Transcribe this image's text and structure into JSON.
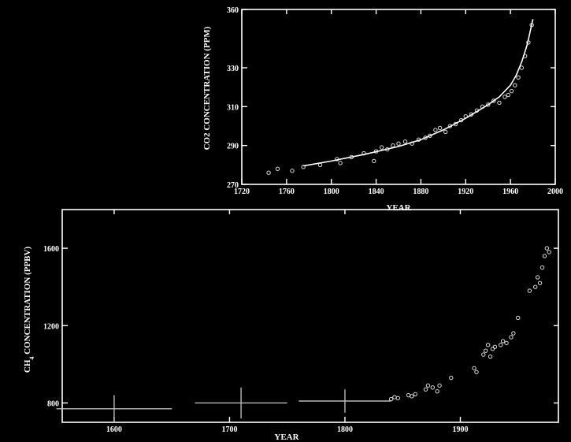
{
  "chart_data": [
    {
      "type": "scatter",
      "title": "",
      "xlabel": "YEAR",
      "ylabel": "CO2 CONCENTRATION (PPM)",
      "xlim": [
        1720,
        2000
      ],
      "ylim": [
        270,
        360
      ],
      "xticks": [
        1720,
        1760,
        1800,
        1840,
        1880,
        1920,
        1960,
        2000
      ],
      "yticks": [
        270,
        290,
        310,
        330,
        360
      ],
      "grid": false,
      "series": [
        {
          "kind": "points",
          "x": [
            1744,
            1752,
            1765,
            1775,
            1790,
            1805,
            1808,
            1818,
            1829,
            1838,
            1840,
            1845,
            1850,
            1855,
            1860,
            1866,
            1872,
            1878,
            1884,
            1888,
            1893,
            1897,
            1902,
            1906,
            1911,
            1916,
            1920,
            1925,
            1930,
            1935,
            1940,
            1945,
            1950,
            1955,
            1958,
            1961,
            1964,
            1967,
            1970,
            1973,
            1976,
            1979
          ],
          "y": [
            276,
            278,
            277,
            279,
            280,
            283,
            281,
            284,
            286,
            282,
            287,
            289,
            288,
            290,
            291,
            292,
            291,
            293,
            294,
            295,
            298,
            299,
            297,
            300,
            301,
            303,
            305,
            306,
            308,
            310,
            311,
            313,
            312,
            315,
            316,
            318,
            321,
            325,
            330,
            336,
            343,
            352
          ]
        },
        {
          "kind": "fit-line",
          "x": [
            1775,
            1800,
            1830,
            1860,
            1880,
            1900,
            1920,
            1940,
            1950,
            1960,
            1965,
            1970,
            1975,
            1980
          ],
          "y": [
            279.5,
            282,
            285.5,
            289.5,
            293,
            298,
            304,
            311,
            315,
            321,
            326,
            333,
            342,
            355
          ]
        }
      ]
    },
    {
      "type": "scatter",
      "title": "",
      "xlabel": "YEAR",
      "ylabel": "CH4 CONCENTRATION (PPBV)",
      "ylabel_main": "CH",
      "ylabel_sub": "4",
      "ylabel_rest": " CONCENTRATION (PPBV)",
      "xlim": [
        1555,
        1985
      ],
      "ylim": [
        700,
        1800
      ],
      "xticks": [
        1600,
        1700,
        1800,
        1900
      ],
      "yticks": [
        800,
        1200,
        1600
      ],
      "grid": false,
      "series": [
        {
          "kind": "range-estimates",
          "points": [
            {
              "x": 1600,
              "y": 770,
              "x_err": 50,
              "y_err": 70
            },
            {
              "x": 1710,
              "y": 800,
              "x_err": 40,
              "y_err": 80
            },
            {
              "x": 1800,
              "y": 810,
              "x_err": 40,
              "y_err": 60
            }
          ]
        },
        {
          "kind": "points",
          "x": [
            1840,
            1843,
            1846,
            1855,
            1858,
            1861,
            1870,
            1872,
            1876,
            1880,
            1882,
            1892,
            1912,
            1914,
            1920,
            1922,
            1924,
            1926,
            1928,
            1930,
            1935,
            1937,
            1940,
            1944,
            1946,
            1950,
            1960,
            1965,
            1967,
            1969,
            1971,
            1973,
            1975,
            1977
          ],
          "y": [
            820,
            830,
            825,
            840,
            835,
            845,
            870,
            890,
            880,
            860,
            890,
            930,
            980,
            960,
            1050,
            1070,
            1100,
            1040,
            1080,
            1090,
            1100,
            1120,
            1110,
            1140,
            1160,
            1240,
            1380,
            1400,
            1450,
            1420,
            1500,
            1560,
            1600,
            1580
          ]
        }
      ]
    }
  ]
}
